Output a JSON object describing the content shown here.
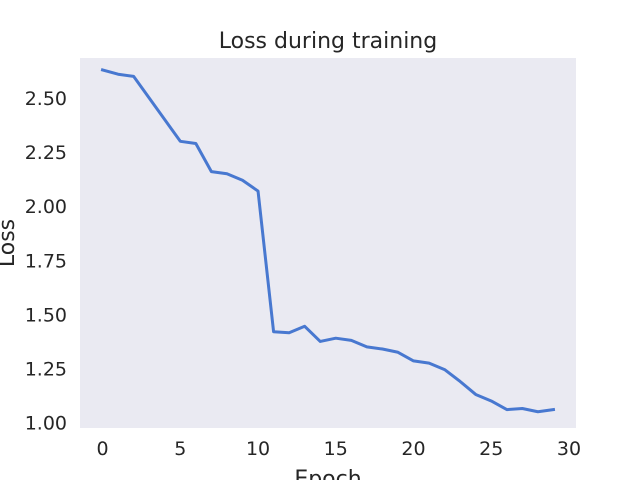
{
  "chart_data": {
    "type": "line",
    "title": "Loss during training",
    "xlabel": "Epoch",
    "ylabel": "Loss",
    "xlim": [
      -1.45,
      30.45
    ],
    "ylim": [
      0.975,
      2.685
    ],
    "xticks": [
      0,
      5,
      10,
      15,
      20,
      25,
      30
    ],
    "yticks": [
      1.0,
      1.25,
      1.5,
      1.75,
      2.0,
      2.25,
      2.5
    ],
    "ytick_labels": [
      "1.00",
      "1.25",
      "1.50",
      "1.75",
      "2.00",
      "2.25",
      "2.50"
    ],
    "xtick_labels": [
      "0",
      "5",
      "10",
      "15",
      "20",
      "25",
      "30"
    ],
    "grid": false,
    "colors": {
      "line": "#4878d0",
      "plot_background": "#eaeaf2"
    },
    "series": [
      {
        "x": [
          0,
          1,
          2,
          3,
          4,
          5,
          6,
          7,
          8,
          9,
          10,
          11,
          12,
          13,
          14,
          15,
          16,
          17,
          18,
          19,
          20,
          21,
          22,
          23,
          24,
          25,
          26,
          27,
          28,
          29
        ],
        "values": [
          2.63,
          2.61,
          2.6,
          2.5,
          2.4,
          2.3,
          2.29,
          2.16,
          2.15,
          2.12,
          2.07,
          1.42,
          1.415,
          1.445,
          1.375,
          1.39,
          1.38,
          1.35,
          1.34,
          1.325,
          1.285,
          1.275,
          1.245,
          1.19,
          1.13,
          1.1,
          1.06,
          1.065,
          1.05,
          1.06
        ]
      }
    ]
  }
}
